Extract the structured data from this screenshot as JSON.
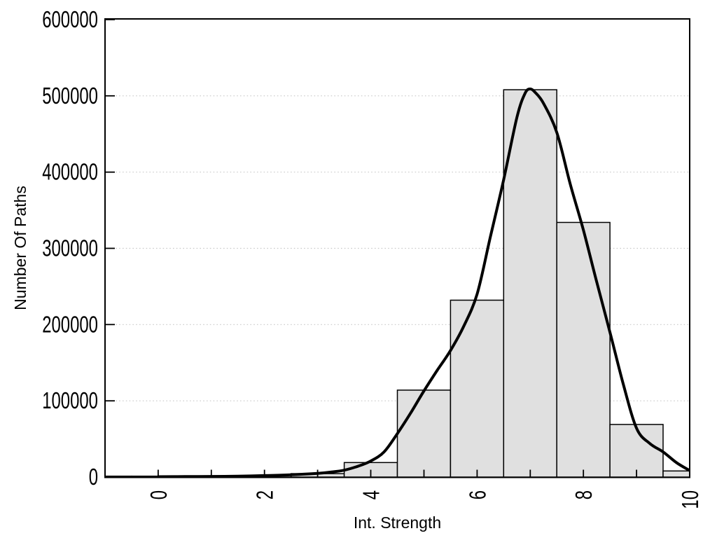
{
  "chart_data": {
    "type": "bar",
    "variant": "histogram_with_density_curve",
    "title": "",
    "xlabel": "Int. Strength",
    "ylabel": "Number Of Paths",
    "xlim": [
      -1,
      10
    ],
    "ylim": [
      0,
      600000
    ],
    "x_tick_values": [
      0,
      2,
      4,
      6,
      8,
      10
    ],
    "x_tick_labels": [
      "0",
      "2",
      "4",
      "6",
      "8",
      "10"
    ],
    "x_all_tick_values": [
      0,
      1,
      2,
      3,
      4,
      5,
      6,
      7,
      8,
      9,
      10
    ],
    "y_tick_values": [
      0,
      100000,
      200000,
      300000,
      400000,
      500000,
      600000
    ],
    "y_tick_labels": [
      "0",
      "100000",
      "200000",
      "300000",
      "400000",
      "500000",
      "600000"
    ],
    "y_grid_values": [
      100000,
      200000,
      300000,
      400000,
      500000
    ],
    "grid": "horizontal dotted",
    "legend": "none",
    "bars": {
      "bin_width": 1,
      "centers": [
        -1,
        0,
        1,
        2,
        3,
        4,
        5,
        6,
        7,
        8,
        9,
        10
      ],
      "values": [
        1200,
        1200,
        1400,
        2000,
        4500,
        19000,
        114000,
        232000,
        508000,
        334000,
        69000,
        8000
      ]
    },
    "curve": {
      "name": "density-fit-curve",
      "points": [
        [
          0,
          500
        ],
        [
          0.5,
          600
        ],
        [
          1,
          800
        ],
        [
          1.5,
          1200
        ],
        [
          2,
          1900
        ],
        [
          2.5,
          2900
        ],
        [
          3,
          4800
        ],
        [
          3.25,
          6500
        ],
        [
          3.5,
          9000
        ],
        [
          3.75,
          14000
        ],
        [
          4,
          21000
        ],
        [
          4.25,
          33000
        ],
        [
          4.5,
          57000
        ],
        [
          4.75,
          84000
        ],
        [
          5,
          113000
        ],
        [
          5.25,
          140000
        ],
        [
          5.5,
          166000
        ],
        [
          5.75,
          198000
        ],
        [
          6,
          240000
        ],
        [
          6.25,
          315000
        ],
        [
          6.5,
          390000
        ],
        [
          6.75,
          472000
        ],
        [
          6.9,
          503000
        ],
        [
          7,
          509000
        ],
        [
          7.1,
          504000
        ],
        [
          7.25,
          490000
        ],
        [
          7.5,
          452000
        ],
        [
          7.75,
          385000
        ],
        [
          8,
          324000
        ],
        [
          8.25,
          256000
        ],
        [
          8.5,
          190000
        ],
        [
          8.75,
          122000
        ],
        [
          9,
          64000
        ],
        [
          9.25,
          44000
        ],
        [
          9.5,
          33000
        ],
        [
          9.75,
          19000
        ],
        [
          10,
          8500
        ]
      ]
    },
    "styles": {
      "bar_fill": "#e0e0e0",
      "bar_stroke": "#000000",
      "curve_color": "#000000",
      "grid_color": "#c9c9c9",
      "axis_color": "#000000",
      "background": "#ffffff"
    }
  }
}
